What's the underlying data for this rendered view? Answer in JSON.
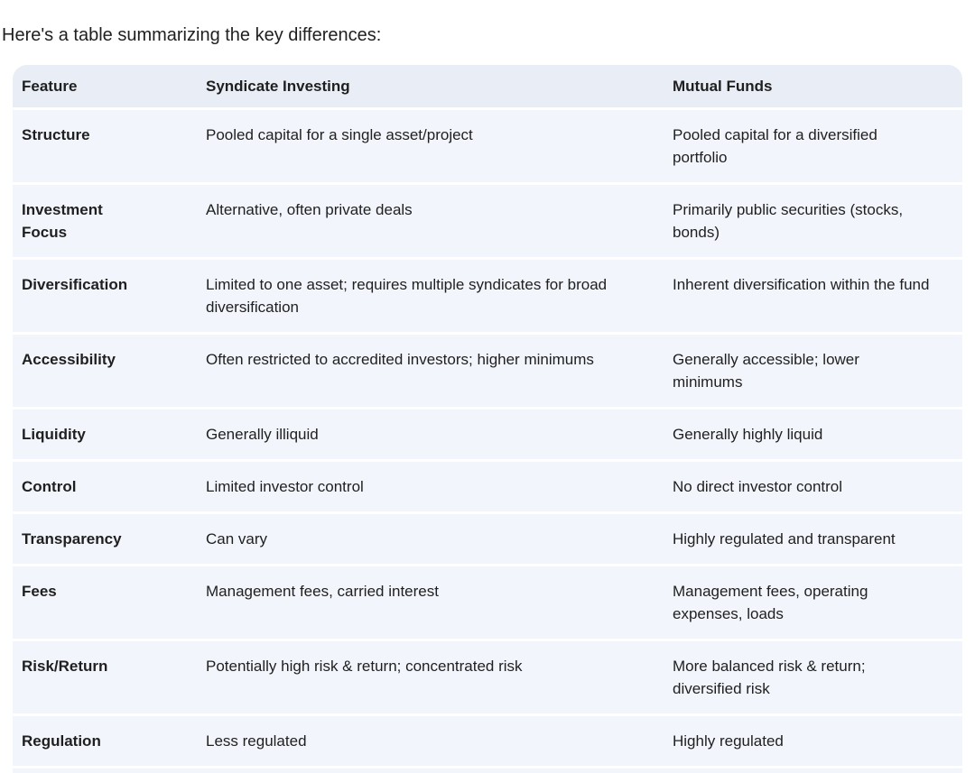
{
  "intro_text": "Here's a table summarizing the key differences:",
  "colors": {
    "header_bg": "#e8edf6",
    "row_bg": "#f2f5fb",
    "gap": "#ffffff",
    "text": "#1f1f1f"
  },
  "table": {
    "headers": {
      "feature": "Feature",
      "syndicate": "Syndicate Investing",
      "mutual": "Mutual Funds"
    },
    "rows": [
      {
        "feature": "Structure",
        "syndicate": "Pooled capital for a single asset/project",
        "mutual": "Pooled capital for a diversified portfolio"
      },
      {
        "feature": "Investment Focus",
        "syndicate": "Alternative, often private deals",
        "mutual": "Primarily public securities (stocks, bonds)"
      },
      {
        "feature": "Diversification",
        "syndicate": "Limited to one asset; requires multiple syndicates for broad diversification",
        "mutual": "Inherent diversification within the fund"
      },
      {
        "feature": "Accessibility",
        "syndicate": "Often restricted to accredited investors; higher minimums",
        "mutual": "Generally accessible; lower minimums"
      },
      {
        "feature": "Liquidity",
        "syndicate": "Generally illiquid",
        "mutual": "Generally highly liquid"
      },
      {
        "feature": "Control",
        "syndicate": "Limited investor control",
        "mutual": "No direct investor control"
      },
      {
        "feature": "Transparency",
        "syndicate": "Can vary",
        "mutual": "Highly regulated and transparent"
      },
      {
        "feature": "Fees",
        "syndicate": "Management fees, carried interest",
        "mutual": "Management fees, operating expenses, loads"
      },
      {
        "feature": "Risk/Return",
        "syndicate": "Potentially high risk & return; concentrated risk",
        "mutual": "More balanced risk & return; diversified risk"
      },
      {
        "feature": "Regulation",
        "syndicate": "Less regulated",
        "mutual": "Highly regulated"
      }
    ]
  }
}
